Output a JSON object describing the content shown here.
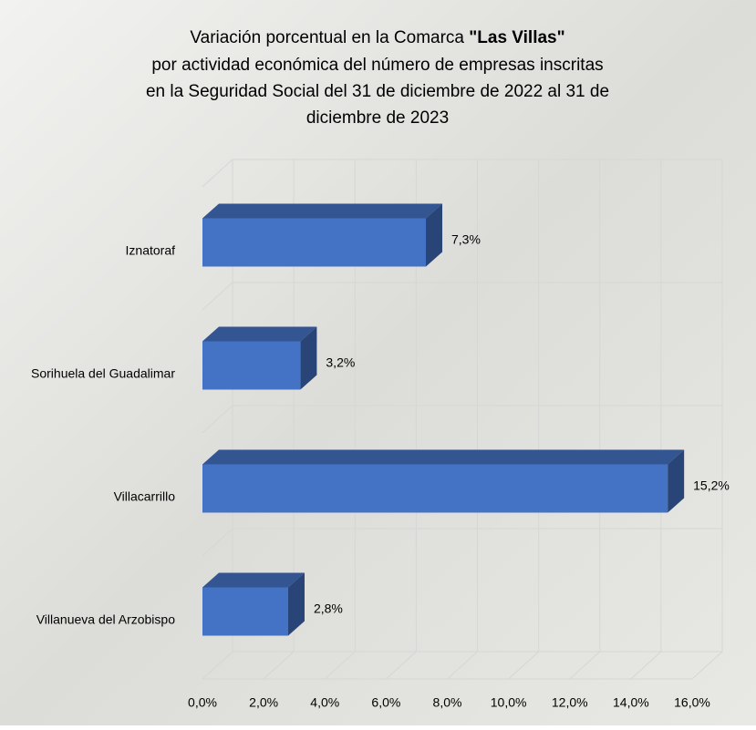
{
  "chart_data": {
    "type": "bar3d_horizontal",
    "title": [
      {
        "text": "Variación porcentual en la Comarca "
      },
      {
        "text": "\"Las Villas\"",
        "bold": true
      }
    ],
    "subtitle": [
      "por actividad económica del número de empresas inscritas",
      "en la Seguridad Social del 31 de diciembre de 2022 al 31 de",
      "diciembre de 2023"
    ],
    "categories": [
      "Iznatoraf",
      "Sorihuela del Guadalimar",
      "Villacarrillo",
      "Villanueva del Arzobispo"
    ],
    "values": [
      7.3,
      3.2,
      15.2,
      2.8
    ],
    "value_labels": [
      "7,3%",
      "3,2%",
      "15,2%",
      "2,8%"
    ],
    "color": "#4472c4",
    "xlim": [
      0,
      16
    ],
    "xticks": [
      {
        "value": 0,
        "label": "0,0%"
      },
      {
        "value": 2,
        "label": "2,0%"
      },
      {
        "value": 4,
        "label": "4,0%"
      },
      {
        "value": 6,
        "label": "6,0%"
      },
      {
        "value": 8,
        "label": "8,0%"
      },
      {
        "value": 10,
        "label": "10,0%"
      },
      {
        "value": 12,
        "label": "12,0%"
      },
      {
        "value": 14,
        "label": "14,0%"
      },
      {
        "value": 16,
        "label": "16,0%"
      }
    ],
    "grid": true
  }
}
